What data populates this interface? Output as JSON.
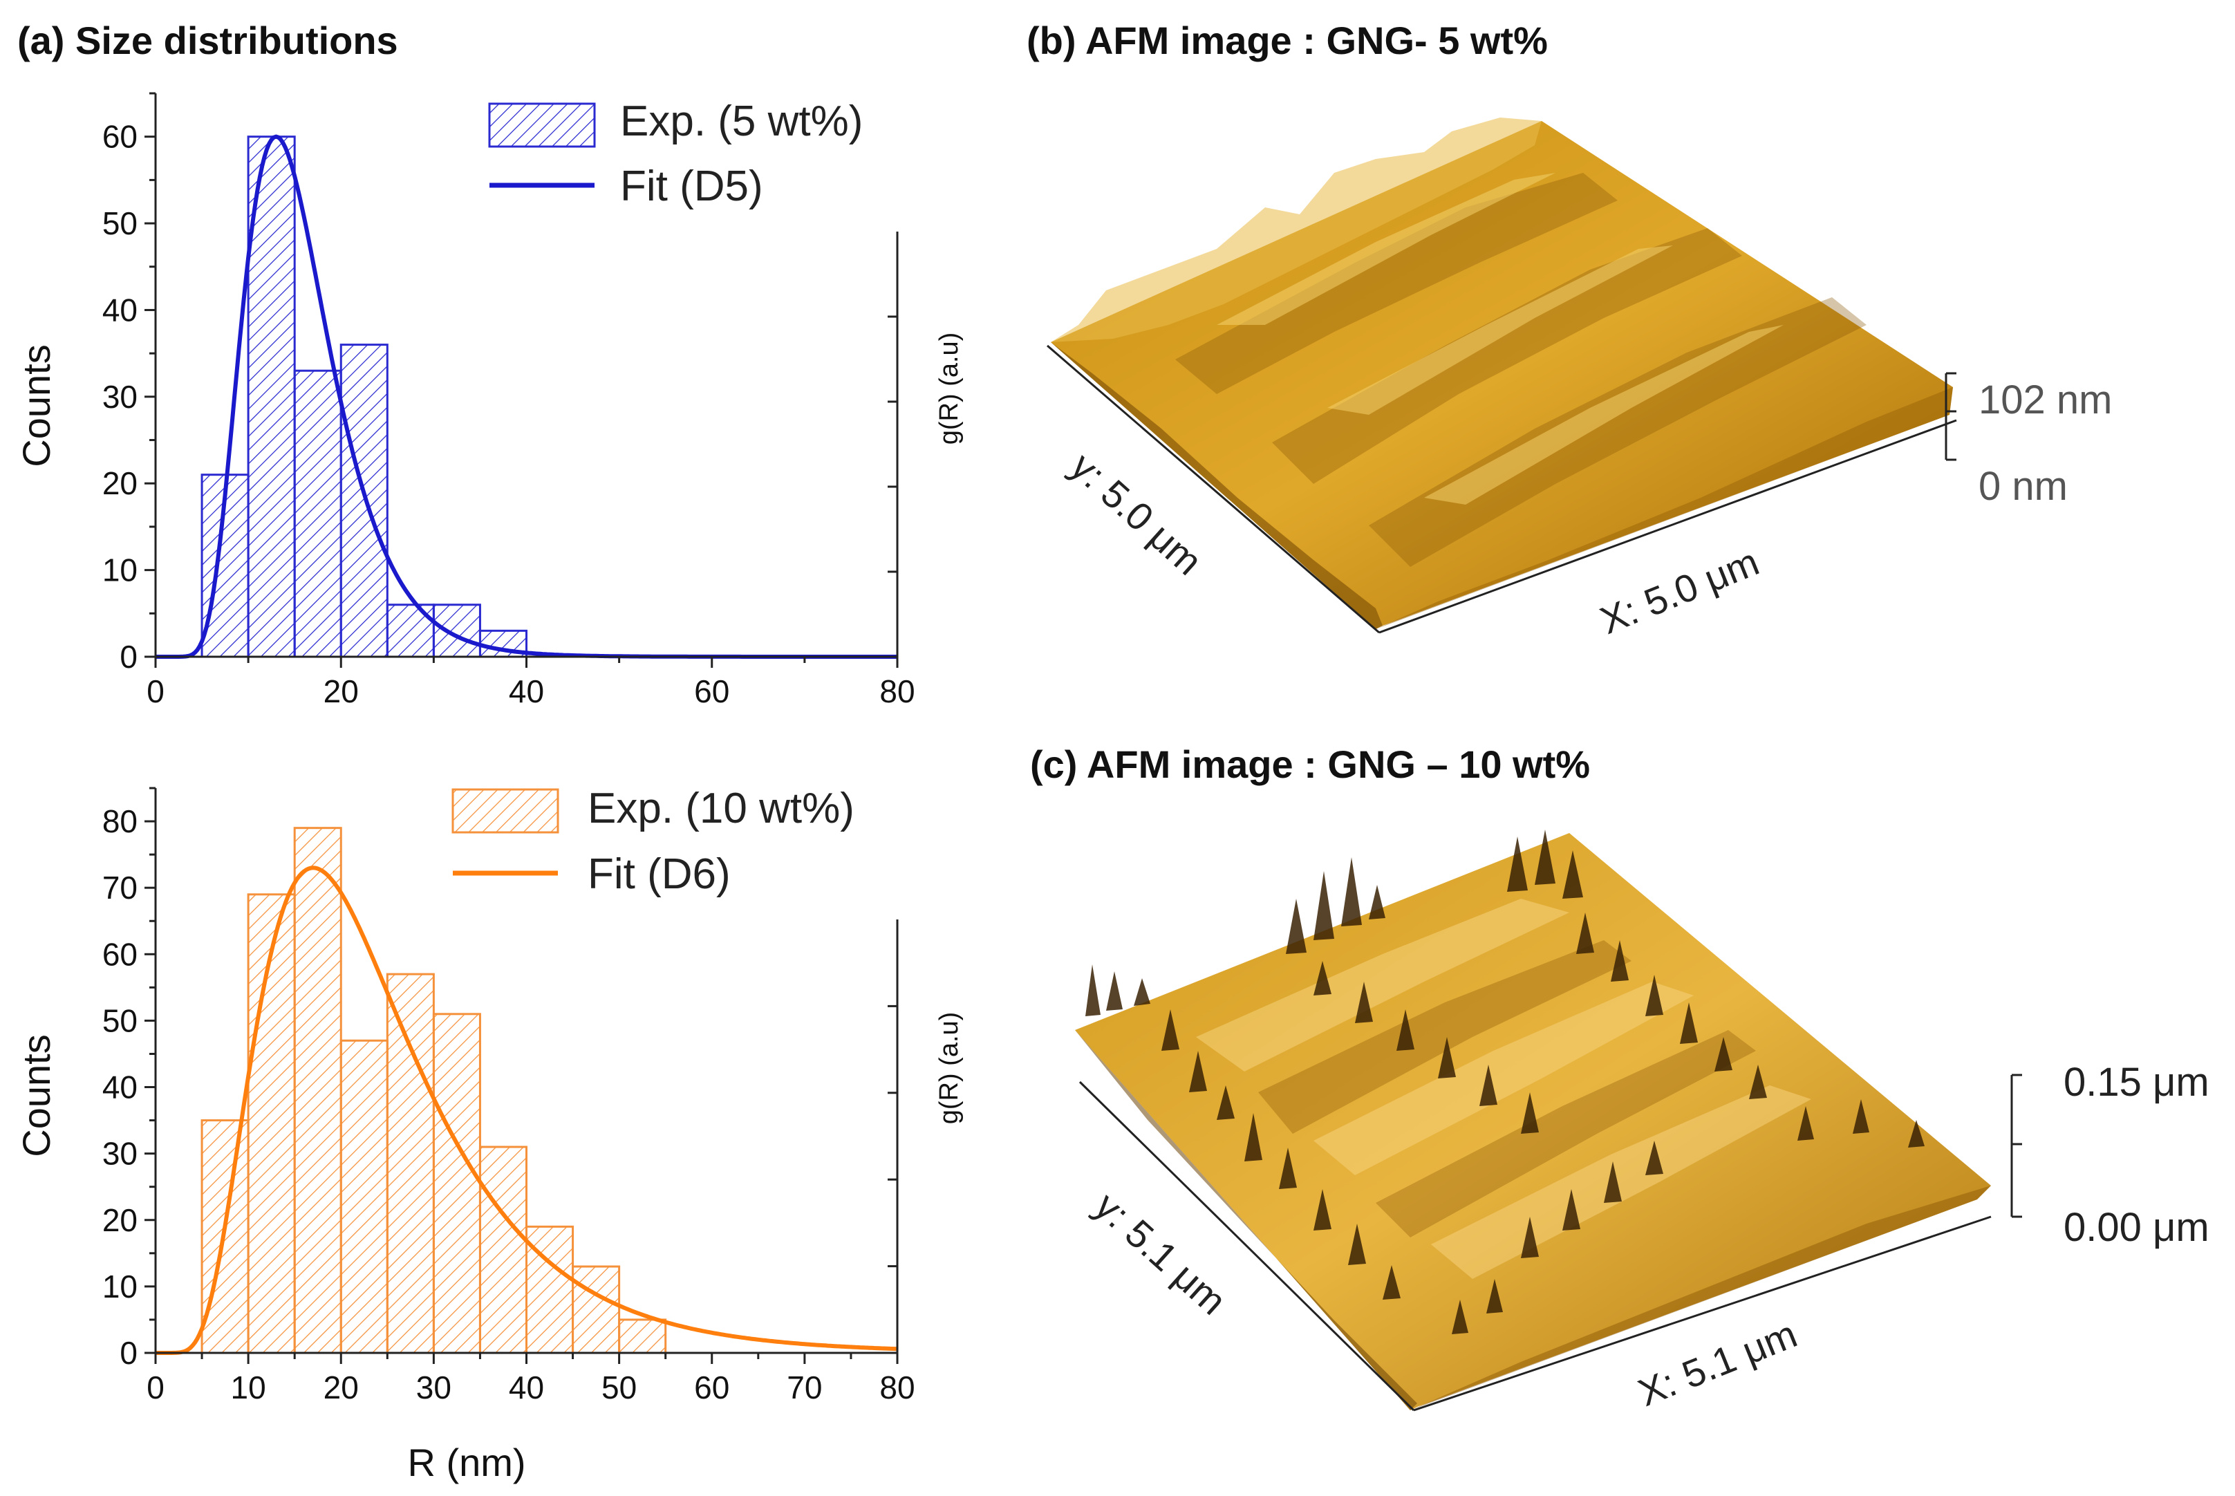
{
  "chart_data": [
    {
      "type": "bar",
      "panel_title": "(a) Size distributions",
      "xlabel": "",
      "ylabel": "Counts",
      "y2label": "g(R) (a.u)",
      "xlim": [
        0,
        80
      ],
      "ylim": [
        0,
        65
      ],
      "xticks": [
        0,
        20,
        40,
        60,
        80
      ],
      "yticks": [
        0,
        10,
        20,
        30,
        40,
        50,
        60
      ],
      "bin_width": 5,
      "bin_starts": [
        5,
        10,
        15,
        20,
        25,
        30,
        35
      ],
      "values": [
        21,
        60,
        33,
        36,
        6,
        6,
        3
      ],
      "legend": {
        "bars": "Exp. (5 wt%)",
        "fit": "Fit (D5)"
      },
      "fit": {
        "type": "lognormal",
        "amplitude": 60,
        "mode": 13,
        "sigma": 0.36
      },
      "color": "#1a1acc"
    },
    {
      "type": "bar",
      "xlabel": "R (nm)",
      "ylabel": "Counts",
      "y2label": "g(R) (a.u)",
      "xlim": [
        0,
        80
      ],
      "ylim": [
        0,
        85
      ],
      "xticks": [
        0,
        10,
        20,
        30,
        40,
        50,
        60,
        70,
        80
      ],
      "yticks": [
        0,
        10,
        20,
        30,
        40,
        50,
        60,
        70,
        80
      ],
      "bin_width": 5,
      "bin_starts": [
        5,
        10,
        15,
        20,
        25,
        30,
        35,
        40,
        45,
        50
      ],
      "values": [
        35,
        69,
        79,
        47,
        57,
        51,
        31,
        19,
        13,
        5
      ],
      "legend": {
        "bars": "Exp. (10 wt%)",
        "fit": "Fit (D6)"
      },
      "fit": {
        "type": "lognormal",
        "amplitude": 73,
        "mode": 17,
        "sigma": 0.5
      },
      "color": "#ff7f0e"
    }
  ],
  "afm_b": {
    "title": "(b) AFM image : GNG- 5 wt%",
    "y_label": "y: 5.0 μm",
    "x_label": "X: 5.0 μm",
    "scale_top": "102 nm",
    "scale_bottom": "0 nm"
  },
  "afm_c": {
    "title": "(c) AFM image : GNG – 10 wt%",
    "y_label": "y: 5.1 μm",
    "x_label": "X: 5.1 μm",
    "scale_top": "0.15 μm",
    "scale_bottom": "0.00 μm"
  }
}
